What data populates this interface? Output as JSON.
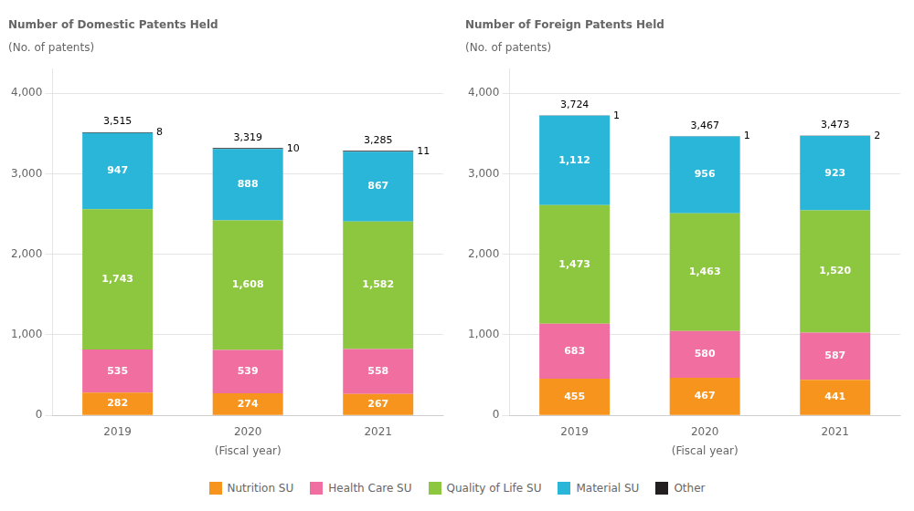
{
  "chart_data": [
    {
      "type": "bar",
      "title": "Number of Domestic Patents Held",
      "ylabel": "(No. of patents)",
      "xlabel": "(Fiscal year)",
      "categories": [
        "2019",
        "2020",
        "2021"
      ],
      "stacked": true,
      "data_labels": true,
      "grid": true,
      "legend": "bottom",
      "series": [
        {
          "name": "Nutrition SU",
          "color": "#F7941D",
          "values": [
            282,
            274,
            267
          ],
          "value_labels": [
            "282",
            "274",
            "267"
          ]
        },
        {
          "name": "Health Care SU",
          "color": "#F06EA0",
          "values": [
            535,
            539,
            558
          ],
          "value_labels": [
            "535",
            "539",
            "558"
          ]
        },
        {
          "name": "Quality of Life SU",
          "color": "#8DC63F",
          "values": [
            1743,
            1608,
            1582
          ],
          "value_labels": [
            "1,743",
            "1,608",
            "1,582"
          ]
        },
        {
          "name": "Material SU",
          "color": "#29B6D8",
          "values": [
            947,
            888,
            867
          ],
          "value_labels": [
            "947",
            "888",
            "867"
          ]
        },
        {
          "name": "Other",
          "color": "#231F20",
          "values": [
            8,
            10,
            11
          ],
          "value_labels": [
            "8",
            "10",
            "11"
          ]
        }
      ],
      "totals": [
        3515,
        3319,
        3285
      ],
      "total_labels": [
        "3,515",
        "3,319",
        "3,285"
      ],
      "ylim": [
        0,
        4300
      ],
      "yticks": [
        0,
        {
          "value": 1000,
          "label": "1,000"
        },
        {
          "value": 2000,
          "label": "2,000"
        },
        {
          "value": 3000,
          "label": "3,000"
        },
        {
          "value": 4000,
          "label": "4,000"
        }
      ]
    },
    {
      "type": "bar",
      "title": "Number of Foreign Patents Held",
      "ylabel": "(No. of patents)",
      "xlabel": "(Fiscal year)",
      "categories": [
        "2019",
        "2020",
        "2021"
      ],
      "stacked": true,
      "data_labels": true,
      "grid": true,
      "legend": "bottom",
      "series": [
        {
          "name": "Nutrition SU",
          "color": "#F7941D",
          "values": [
            455,
            467,
            441
          ],
          "value_labels": [
            "455",
            "467",
            "441"
          ]
        },
        {
          "name": "Health Care SU",
          "color": "#F06EA0",
          "values": [
            683,
            580,
            587
          ],
          "value_labels": [
            "683",
            "580",
            "587"
          ]
        },
        {
          "name": "Quality of Life SU",
          "color": "#8DC63F",
          "values": [
            1473,
            1463,
            1520
          ],
          "value_labels": [
            "1,473",
            "1,463",
            "1,520"
          ]
        },
        {
          "name": "Material SU",
          "color": "#29B6D8",
          "values": [
            1112,
            956,
            923
          ],
          "value_labels": [
            "1,112",
            "956",
            "923"
          ]
        },
        {
          "name": "Other",
          "color": "#231F20",
          "values": [
            1,
            1,
            2
          ],
          "value_labels": [
            "1",
            "1",
            "2"
          ]
        }
      ],
      "totals": [
        3724,
        3467,
        3473
      ],
      "total_labels": [
        "3,724",
        "3,467",
        "3,473"
      ],
      "ylim": [
        0,
        4300
      ],
      "yticks": [
        0,
        {
          "value": 1000,
          "label": "1,000"
        },
        {
          "value": 2000,
          "label": "2,000"
        },
        {
          "value": 3000,
          "label": "3,000"
        },
        {
          "value": 4000,
          "label": "4,000"
        }
      ]
    }
  ]
}
